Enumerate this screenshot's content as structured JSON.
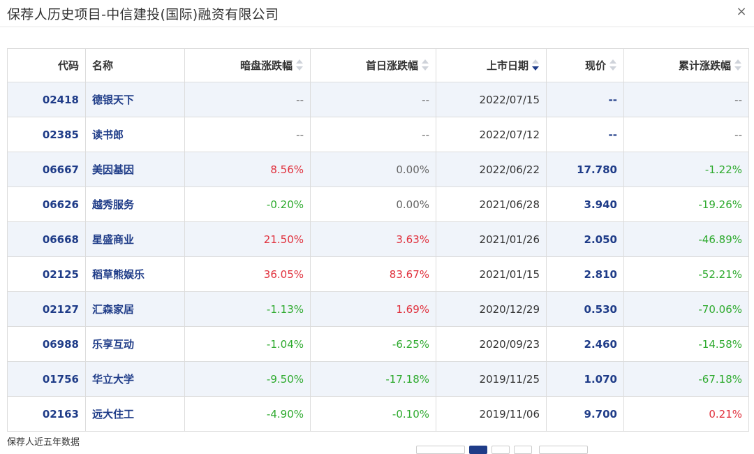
{
  "dialog": {
    "title": "保荐人历史项目-中信建投(国际)融资有限公司",
    "close_label": "×"
  },
  "table": {
    "columns": [
      {
        "key": "code",
        "label": "代码",
        "sortable": false
      },
      {
        "key": "name",
        "label": "名称",
        "sortable": false
      },
      {
        "key": "dark",
        "label": "暗盘涨跌幅",
        "sortable": true,
        "sort": "none"
      },
      {
        "key": "first",
        "label": "首日涨跌幅",
        "sortable": true,
        "sort": "none"
      },
      {
        "key": "date",
        "label": "上市日期",
        "sortable": true,
        "sort": "desc"
      },
      {
        "key": "price",
        "label": "现价",
        "sortable": true,
        "sort": "none"
      },
      {
        "key": "total",
        "label": "累计涨跌幅",
        "sortable": true,
        "sort": "none"
      }
    ],
    "rows": [
      {
        "code": "02418",
        "name": "德银天下",
        "dark": "--",
        "dark_dir": "flat",
        "first": "--",
        "first_dir": "flat",
        "date": "2022/07/15",
        "price": "--",
        "total": "--",
        "total_dir": "flat"
      },
      {
        "code": "02385",
        "name": "读书郎",
        "dark": "--",
        "dark_dir": "flat",
        "first": "--",
        "first_dir": "flat",
        "date": "2022/07/12",
        "price": "--",
        "total": "--",
        "total_dir": "flat"
      },
      {
        "code": "06667",
        "name": "美因基因",
        "dark": "8.56%",
        "dark_dir": "up",
        "first": "0.00%",
        "first_dir": "flat",
        "date": "2022/06/22",
        "price": "17.780",
        "total": "-1.22%",
        "total_dir": "down"
      },
      {
        "code": "06626",
        "name": "越秀服务",
        "dark": "-0.20%",
        "dark_dir": "down",
        "first": "0.00%",
        "first_dir": "flat",
        "date": "2021/06/28",
        "price": "3.940",
        "total": "-19.26%",
        "total_dir": "down"
      },
      {
        "code": "06668",
        "name": "星盛商业",
        "dark": "21.50%",
        "dark_dir": "up",
        "first": "3.63%",
        "first_dir": "up",
        "date": "2021/01/26",
        "price": "2.050",
        "total": "-46.89%",
        "total_dir": "down"
      },
      {
        "code": "02125",
        "name": "稻草熊娱乐",
        "dark": "36.05%",
        "dark_dir": "up",
        "first": "83.67%",
        "first_dir": "up",
        "date": "2021/01/15",
        "price": "2.810",
        "total": "-52.21%",
        "total_dir": "down"
      },
      {
        "code": "02127",
        "name": "汇森家居",
        "dark": "-1.13%",
        "dark_dir": "down",
        "first": "1.69%",
        "first_dir": "up",
        "date": "2020/12/29",
        "price": "0.530",
        "total": "-70.06%",
        "total_dir": "down"
      },
      {
        "code": "06988",
        "name": "乐享互动",
        "dark": "-1.04%",
        "dark_dir": "down",
        "first": "-6.25%",
        "first_dir": "down",
        "date": "2020/09/23",
        "price": "2.460",
        "total": "-14.58%",
        "total_dir": "down"
      },
      {
        "code": "01756",
        "name": "华立大学",
        "dark": "-9.50%",
        "dark_dir": "down",
        "first": "-17.18%",
        "first_dir": "down",
        "date": "2019/11/25",
        "price": "1.070",
        "total": "-67.18%",
        "total_dir": "down"
      },
      {
        "code": "02163",
        "name": "远大住工",
        "dark": "-4.90%",
        "dark_dir": "down",
        "first": "-0.10%",
        "first_dir": "down",
        "date": "2019/11/06",
        "price": "9.700",
        "total": "0.21%",
        "total_dir": "up"
      }
    ]
  },
  "footer": {
    "note": "保荐人近五年数据"
  },
  "colors": {
    "up": "#e0303c",
    "down": "#2eaa2e",
    "link": "#1f3c88",
    "row_alt": "#f0f4fa"
  }
}
